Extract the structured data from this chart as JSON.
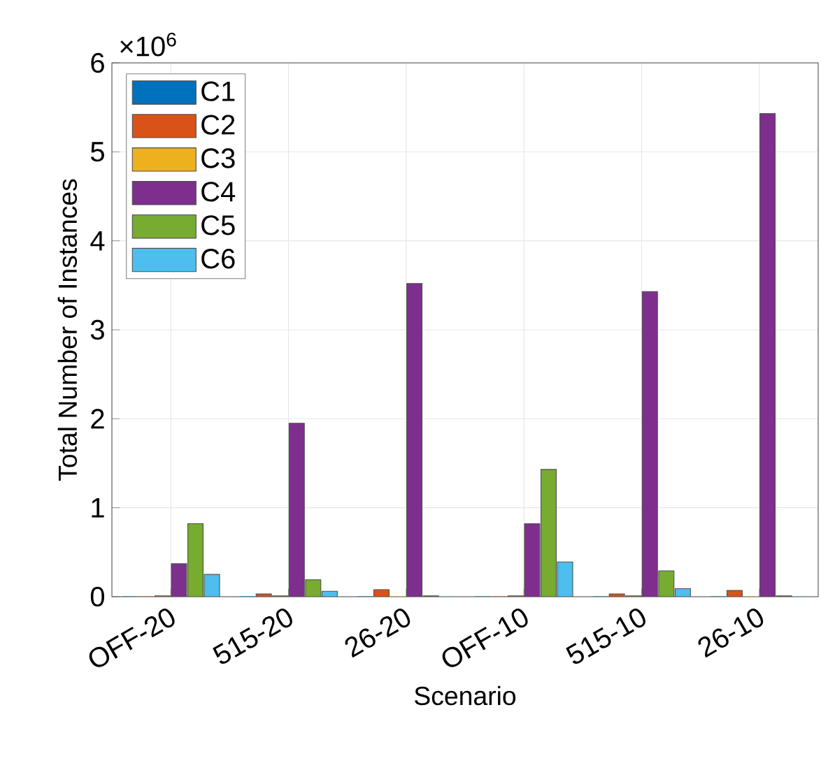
{
  "chart_data": {
    "type": "bar",
    "xlabel": "Scenario",
    "ylabel": "Total Number of Instances",
    "categories": [
      "OFF-20",
      "515-20",
      "26-20",
      "OFF-10",
      "515-10",
      "26-10"
    ],
    "series": [
      {
        "name": "C1",
        "color": "#0072bd",
        "values": [
          0,
          0,
          0,
          0,
          0,
          0
        ]
      },
      {
        "name": "C2",
        "color": "#d95319",
        "values": [
          0,
          0.03,
          0.08,
          0,
          0.03,
          0.07
        ]
      },
      {
        "name": "C3",
        "color": "#edb120",
        "values": [
          0.01,
          0.01,
          0,
          0.01,
          0.01,
          0
        ]
      },
      {
        "name": "C4",
        "color": "#7e2f8e",
        "values": [
          0.37,
          1.95,
          3.52,
          0.82,
          3.43,
          5.43
        ]
      },
      {
        "name": "C5",
        "color": "#77ac30",
        "values": [
          0.82,
          0.19,
          0.01,
          1.43,
          0.29,
          0.01
        ]
      },
      {
        "name": "C6",
        "color": "#4dbeee",
        "values": [
          0.25,
          0.06,
          0,
          0.39,
          0.09,
          0
        ]
      }
    ],
    "ylim": [
      0,
      6
    ],
    "yticks": [
      0,
      1,
      2,
      3,
      4,
      5,
      6
    ],
    "annotations": [
      "×10$^{6}$"
    ],
    "grid": true,
    "legend": "top left"
  }
}
